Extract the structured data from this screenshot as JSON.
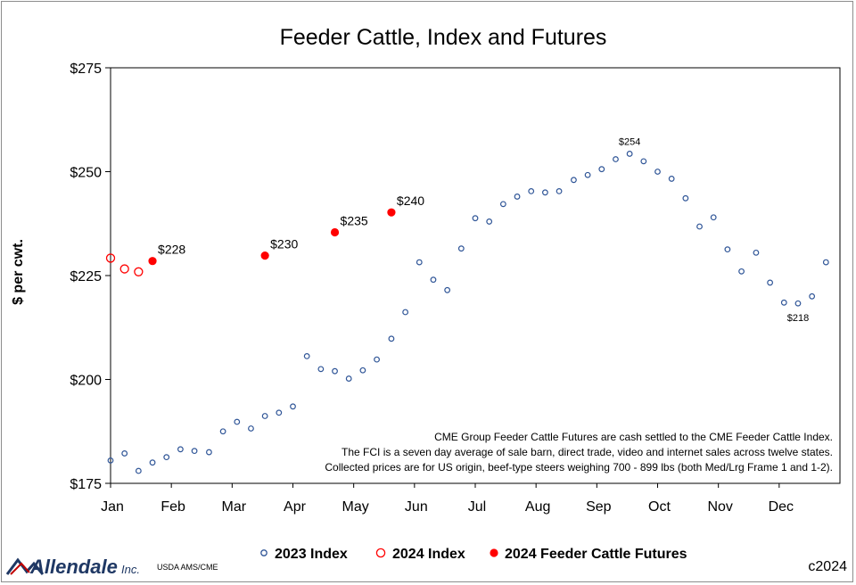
{
  "chart_data": {
    "type": "scatter",
    "title": "Feeder Cattle, Index and Futures",
    "ylabel": "$ per cwt.",
    "xlabel": "",
    "ylim": [
      175,
      275
    ],
    "xlim": [
      0,
      12
    ],
    "y_ticks": [
      175,
      200,
      225,
      250,
      275
    ],
    "y_tick_labels": [
      "$175",
      "$200",
      "$225",
      "$250",
      "$275"
    ],
    "x_tick_labels": [
      "Jan",
      "Feb",
      "Mar",
      "Apr",
      "May",
      "Jun",
      "Jul",
      "Aug",
      "Sep",
      "Oct",
      "Nov",
      "Dec"
    ],
    "series": [
      {
        "name": "2023 Index",
        "marker": "open-circle",
        "color": "#2f5597",
        "points": [
          [
            0.0,
            180.5
          ],
          [
            0.23,
            182.2
          ],
          [
            0.46,
            178.0
          ],
          [
            0.69,
            180.0
          ],
          [
            0.92,
            181.3
          ],
          [
            1.15,
            183.2
          ],
          [
            1.38,
            182.8
          ],
          [
            1.62,
            182.5
          ],
          [
            1.85,
            187.5
          ],
          [
            2.08,
            189.8
          ],
          [
            2.31,
            188.2
          ],
          [
            2.54,
            191.2
          ],
          [
            2.77,
            192.0
          ],
          [
            3.0,
            193.5
          ],
          [
            3.23,
            205.6
          ],
          [
            3.46,
            202.5
          ],
          [
            3.69,
            202.0
          ],
          [
            3.92,
            200.2
          ],
          [
            4.15,
            202.2
          ],
          [
            4.38,
            204.8
          ],
          [
            4.62,
            209.8
          ],
          [
            4.85,
            216.2
          ],
          [
            5.08,
            228.2
          ],
          [
            5.31,
            224.0
          ],
          [
            5.54,
            221.5
          ],
          [
            5.77,
            231.5
          ],
          [
            6.0,
            238.8
          ],
          [
            6.23,
            238.0
          ],
          [
            6.46,
            242.2
          ],
          [
            6.69,
            244.0
          ],
          [
            6.92,
            245.3
          ],
          [
            7.15,
            245.0
          ],
          [
            7.38,
            245.3
          ],
          [
            7.62,
            248.0
          ],
          [
            7.85,
            249.2
          ],
          [
            8.08,
            250.6
          ],
          [
            8.31,
            253.0
          ],
          [
            8.54,
            254.3
          ],
          [
            8.77,
            252.5
          ],
          [
            9.0,
            250.0
          ],
          [
            9.23,
            248.3
          ],
          [
            9.46,
            243.6
          ],
          [
            9.69,
            236.8
          ],
          [
            9.92,
            239.0
          ],
          [
            10.15,
            231.3
          ],
          [
            10.38,
            226.0
          ],
          [
            10.62,
            230.5
          ],
          [
            10.85,
            223.3
          ],
          [
            11.08,
            218.5
          ],
          [
            11.31,
            218.3
          ],
          [
            11.54,
            220.0
          ],
          [
            11.77,
            228.2
          ]
        ]
      },
      {
        "name": "2024 Index",
        "marker": "open-circle-large",
        "color": "#ff0000",
        "points": [
          [
            0.0,
            229.2
          ],
          [
            0.23,
            226.6
          ],
          [
            0.46,
            225.9
          ]
        ]
      },
      {
        "name": "2024 Feeder Cattle Futures",
        "marker": "filled-circle",
        "color": "#ff0000",
        "points": [
          [
            0.69,
            228.5
          ],
          [
            2.54,
            229.8
          ],
          [
            3.69,
            235.4
          ],
          [
            4.62,
            240.2
          ]
        ]
      }
    ],
    "data_labels": [
      {
        "text": "$228",
        "x": 0.69,
        "y": 228.5,
        "series": "2024 Feeder Cattle Futures"
      },
      {
        "text": "$230",
        "x": 2.54,
        "y": 229.8,
        "series": "2024 Feeder Cattle Futures"
      },
      {
        "text": "$235",
        "x": 3.69,
        "y": 235.4,
        "series": "2024 Feeder Cattle Futures"
      },
      {
        "text": "$240",
        "x": 4.62,
        "y": 240.2,
        "series": "2024 Feeder Cattle Futures"
      },
      {
        "text": "$254",
        "x": 8.54,
        "y": 254.3,
        "series": "2023 Index"
      },
      {
        "text": "$218",
        "x": 11.31,
        "y": 218.3,
        "series": "2023 Index"
      }
    ],
    "annotation_lines": [
      "CME Group Feeder Cattle Futures are cash settled to the CME Feeder Cattle Index.",
      "The FCI is a seven day average of sale barn, direct trade, video and internet sales across twelve states.",
      "Collected prices are for US origin, beef-type steers weighing 700 - 899 lbs (both Med/Lrg Frame 1 and 1-2)."
    ],
    "legend": {
      "placement": "bottom-center",
      "entries": [
        "2023 Index",
        "2024 Index",
        "2024 Feeder Cattle Futures"
      ]
    }
  },
  "footer": {
    "logo_name": "Allendale",
    "logo_suffix": "Inc.",
    "source": "USDA AMS/CME",
    "copyright": "c2024"
  },
  "colors": {
    "index_2023": "#2f5597",
    "index_2024": "#ff0000",
    "futures_2024": "#ff0000",
    "logo": "#1f3864",
    "logo_accent": "#c00000"
  }
}
